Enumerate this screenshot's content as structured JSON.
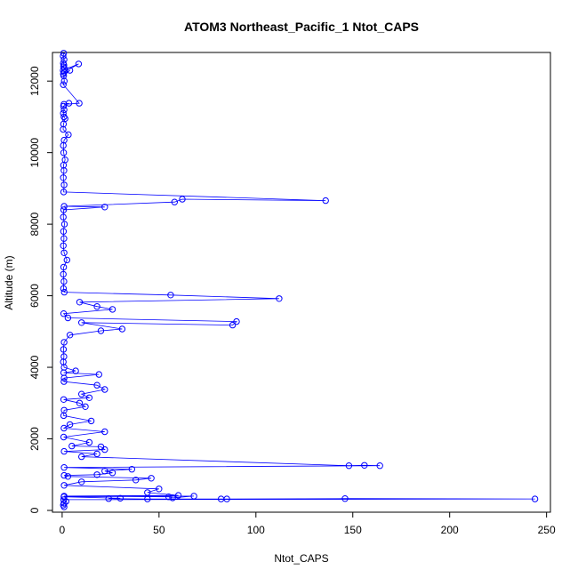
{
  "chart_data": {
    "type": "line",
    "title": "ATOM3 Northeast_Pacific_1 Ntot_CAPS",
    "xlabel": "Ntot_CAPS",
    "ylabel": "Altitude (m)",
    "xlim": [
      -5,
      252
    ],
    "ylim": [
      -50,
      12800
    ],
    "x_ticks": [
      0,
      50,
      100,
      150,
      200,
      250
    ],
    "y_ticks": [
      0,
      2000,
      4000,
      6000,
      8000,
      10000,
      12000
    ],
    "grid": false,
    "color": "#0000ff",
    "series": [
      {
        "x": [
          0.8,
          0.5,
          1.0,
          0.6,
          0.9,
          0.7,
          1.2,
          0.5,
          8.5,
          1.0,
          0.6,
          4.0,
          0.8,
          1.1,
          0.6,
          8.8,
          0.9,
          3.5,
          0.7,
          1.0,
          0.6,
          0.9,
          1.5,
          0.7,
          0.5,
          3.2,
          1.0,
          0.6,
          0.8,
          1.5,
          0.7,
          0.9,
          0.6,
          1.0,
          0.8,
          136.0,
          62.0,
          58.0,
          1.0,
          22.0,
          0.8,
          0.6,
          1.2,
          0.7,
          0.9,
          0.6,
          1.0,
          2.5,
          0.8,
          0.6,
          0.9,
          0.7,
          1.1,
          56.0,
          112.0,
          9.0,
          18.0,
          26.0,
          0.8,
          3.0,
          90.0,
          88.0,
          10.0,
          31.0,
          20.0,
          4.0,
          1.0,
          0.7,
          0.9,
          0.6,
          1.0,
          7.0,
          0.8,
          19.0,
          1.0,
          0.9,
          18.0,
          22.0,
          10.0,
          14.0,
          0.8,
          9.0,
          12.0,
          1.0,
          0.8,
          15.0,
          4.0,
          0.9,
          22.0,
          0.8,
          14.0,
          5.0,
          20.0,
          22.0,
          1.0,
          18.0,
          10.0,
          148.0,
          156.0,
          164.0,
          1.0,
          36.0,
          22.0,
          26.0,
          18.0,
          1.0,
          3.0,
          46.0,
          38.0,
          10.0,
          1.0,
          50.0,
          44.0,
          60.0,
          1.0,
          55.0,
          57.0,
          68.0,
          0.9,
          30.0,
          24.0,
          44.0,
          82.0,
          85.0,
          146.0,
          244.0,
          0.8,
          2.0,
          0.9,
          0.6,
          1.0
        ],
        "y": [
          12780,
          12700,
          12600,
          12500,
          12450,
          12400,
          12350,
          12300,
          12480,
          12250,
          12200,
          12300,
          12150,
          12000,
          11900,
          11380,
          11350,
          11380,
          11300,
          11200,
          11100,
          11000,
          10950,
          10800,
          10650,
          10500,
          10350,
          10200,
          10000,
          9800,
          9650,
          9500,
          9300,
          9100,
          8900,
          8660,
          8700,
          8620,
          8500,
          8480,
          8400,
          8200,
          8000,
          7800,
          7600,
          7400,
          7200,
          7000,
          6800,
          6600,
          6400,
          6200,
          6100,
          6020,
          5920,
          5820,
          5700,
          5620,
          5500,
          5380,
          5280,
          5180,
          5250,
          5070,
          5020,
          4900,
          4700,
          4500,
          4300,
          4150,
          4000,
          3900,
          3850,
          3800,
          3700,
          3600,
          3500,
          3380,
          3250,
          3150,
          3100,
          3000,
          2900,
          2800,
          2650,
          2500,
          2400,
          2300,
          2200,
          2050,
          1900,
          1800,
          1780,
          1700,
          1650,
          1580,
          1500,
          1250,
          1260,
          1250,
          1200,
          1150,
          1100,
          1050,
          1000,
          980,
          950,
          900,
          850,
          800,
          700,
          600,
          500,
          420,
          400,
          380,
          350,
          400,
          380,
          340,
          330,
          320,
          320,
          320,
          330,
          320,
          300,
          250,
          200,
          150,
          100
        ]
      }
    ]
  }
}
